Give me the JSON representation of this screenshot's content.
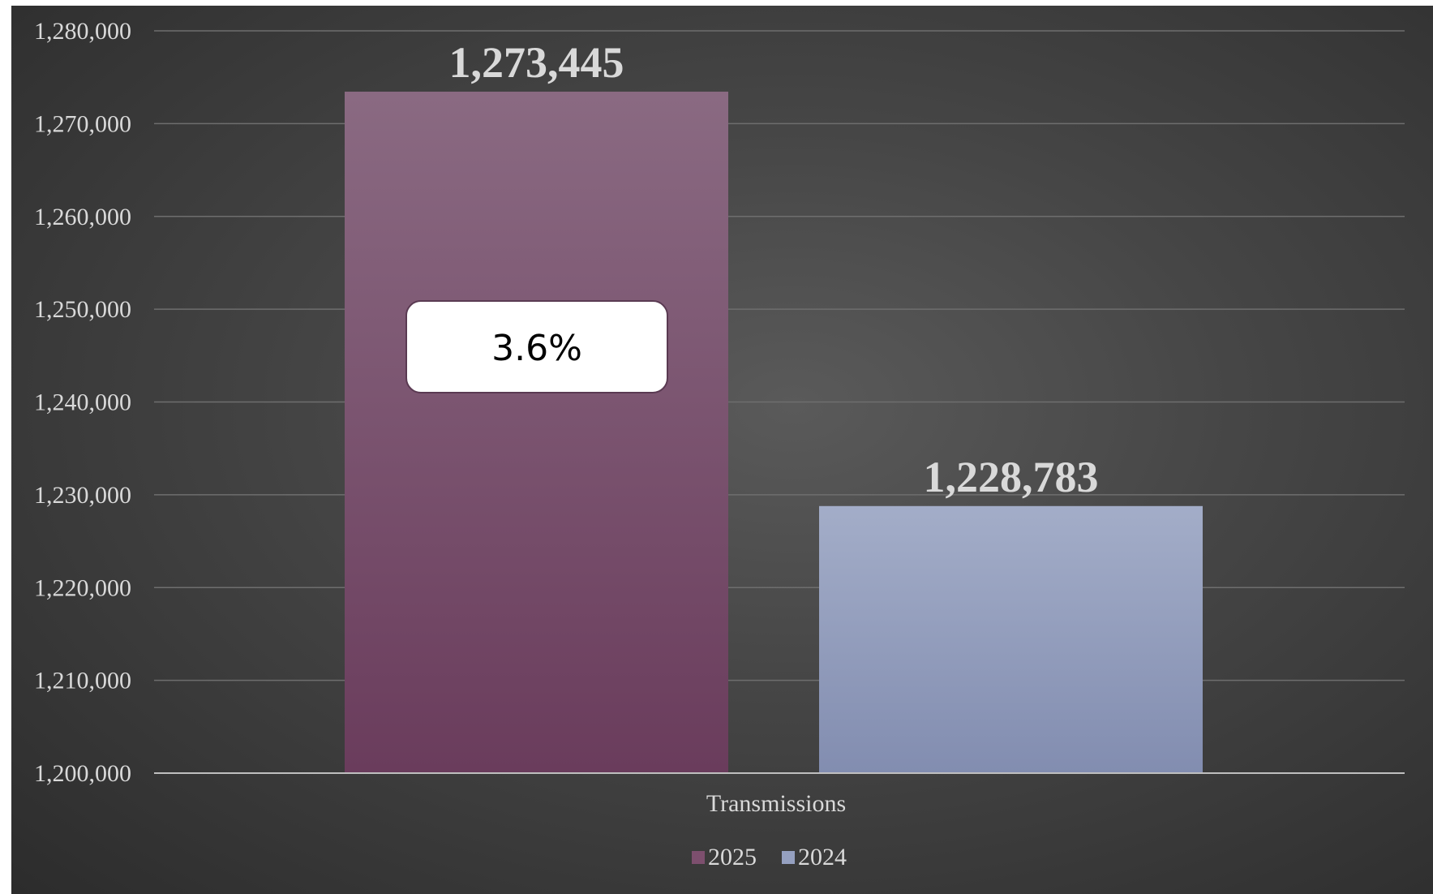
{
  "chart_data": {
    "type": "bar",
    "categories": [
      "Transmissions"
    ],
    "series": [
      {
        "name": "2025",
        "values": [
          1273445
        ],
        "color": "#7d4f6e"
      },
      {
        "name": "2024",
        "values": [
          1228783
        ],
        "color": "#95a0c0"
      }
    ],
    "data_labels": [
      "1,273,445",
      "1,228,783"
    ],
    "callout": "3.6%",
    "ylim": [
      1200000,
      1280000
    ],
    "yticks": [
      "1,200,000",
      "1,210,000",
      "1,220,000",
      "1,230,000",
      "1,240,000",
      "1,250,000",
      "1,260,000",
      "1,270,000",
      "1,280,000"
    ],
    "ytick_values": [
      1200000,
      1210000,
      1220000,
      1230000,
      1240000,
      1250000,
      1260000,
      1270000,
      1280000
    ],
    "grid": true,
    "legend_position": "bottom",
    "background": "#464646"
  }
}
